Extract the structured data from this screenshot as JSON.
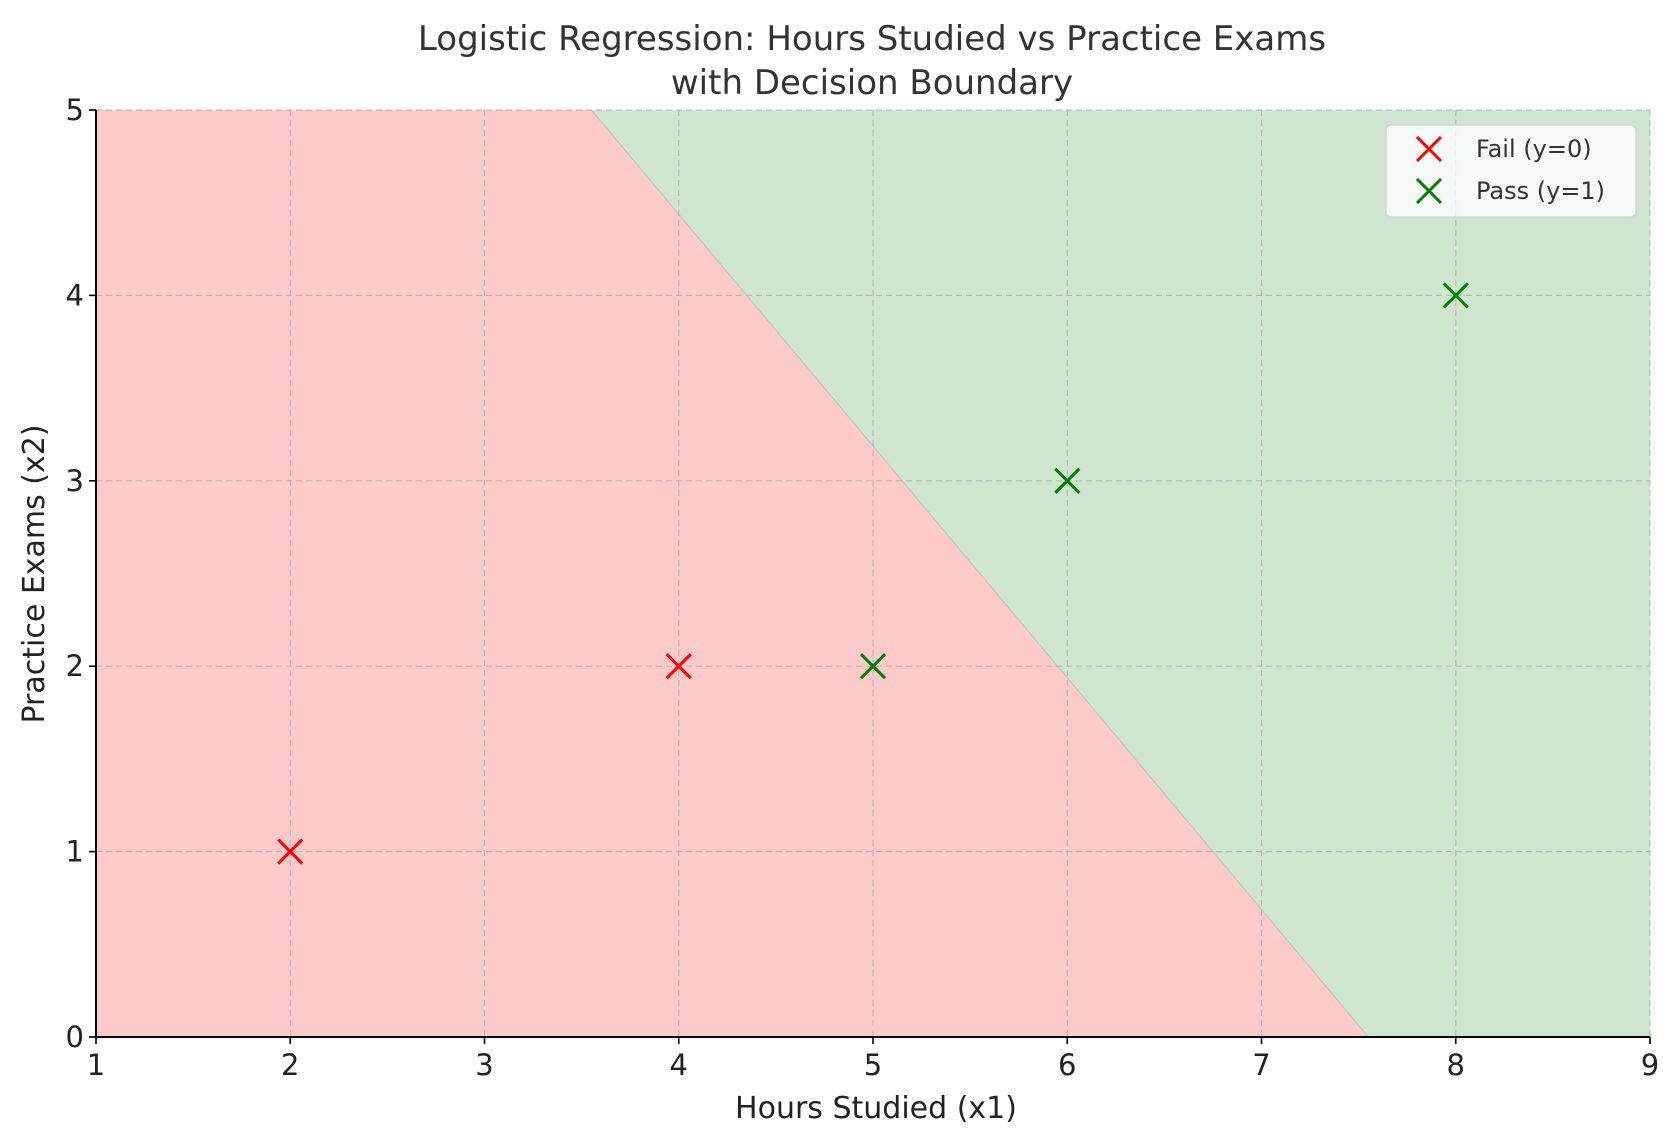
{
  "chart_data": {
    "type": "scatter",
    "title": "Logistic Regression: Hours Studied vs Practice Exams",
    "subtitle": "with Decision Boundary",
    "xlabel": "Hours Studied (x1)",
    "ylabel": "Practice Exams (x2)",
    "xlim": [
      1,
      9
    ],
    "ylim": [
      0,
      5
    ],
    "xticks": [
      "1",
      "2",
      "3",
      "4",
      "5",
      "6",
      "7",
      "8",
      "9"
    ],
    "yticks": [
      "0",
      "1",
      "2",
      "3",
      "4",
      "5"
    ],
    "grid": true,
    "legend_position": "top-right",
    "series": [
      {
        "name": "Fail (y=0)",
        "marker": "x",
        "color": "#ff0000",
        "points": [
          {
            "x": 2,
            "y": 1
          },
          {
            "x": 4,
            "y": 2
          }
        ]
      },
      {
        "name": "Pass (y=1)",
        "marker": "x",
        "color": "#008000",
        "points": [
          {
            "x": 5,
            "y": 2
          },
          {
            "x": 6,
            "y": 3
          },
          {
            "x": 8,
            "y": 4
          }
        ]
      }
    ],
    "decision_boundary": {
      "points": [
        {
          "x": 3.55,
          "y": 5
        },
        {
          "x": 7.55,
          "y": 0
        }
      ],
      "fail_region_color": "#fdcaca",
      "pass_region_color": "#cfe5cf"
    }
  }
}
